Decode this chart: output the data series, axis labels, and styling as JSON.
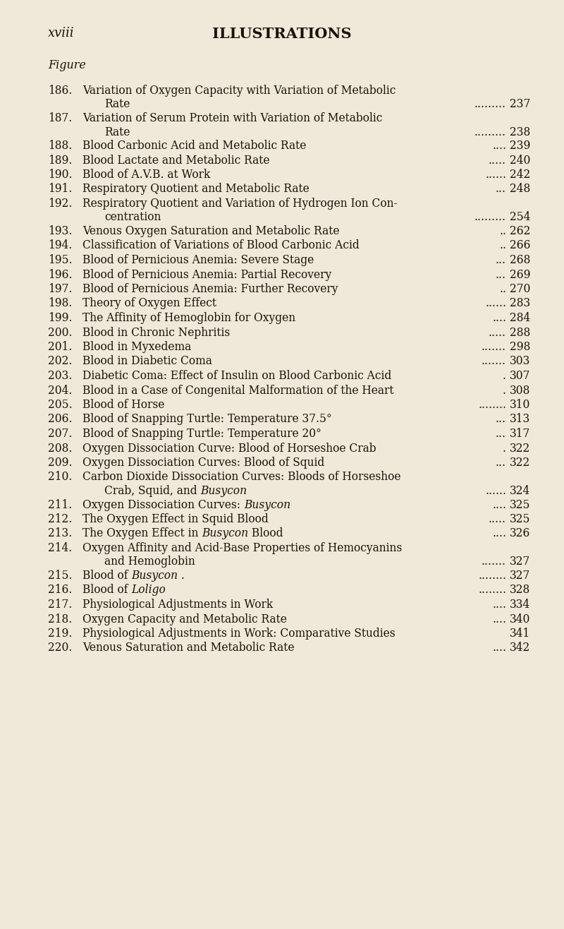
{
  "background_color": "#f0e8d8",
  "page_label": "xviii",
  "header": "ILLUSTRATIONS",
  "figure_label": "Figure",
  "text_color": "#1a1208",
  "font_size": 11.2,
  "entries": [
    {
      "num": "186.",
      "lines": [
        {
          "text": "Variation of Oxygen Capacity with Variation of Metabolic",
          "indent": false
        },
        {
          "text": "Rate",
          "indent": true,
          "dots": ".........",
          "page": "237"
        }
      ]
    },
    {
      "num": "187.",
      "lines": [
        {
          "text": "Variation of Serum Protein with Variation of Metabolic",
          "indent": false
        },
        {
          "text": "Rate",
          "indent": true,
          "dots": ".........",
          "page": "238"
        }
      ]
    },
    {
      "num": "188.",
      "lines": [
        {
          "text": "Blood Carbonic Acid and Metabolic Rate",
          "indent": false,
          "dots": "....",
          "page": "239"
        }
      ]
    },
    {
      "num": "189.",
      "lines": [
        {
          "text": "Blood Lactate and Metabolic Rate",
          "indent": false,
          "dots": ".....",
          "page": "240"
        }
      ]
    },
    {
      "num": "190.",
      "lines": [
        {
          "text": "Blood of A.V.B. at Work",
          "indent": false,
          "dots": "......",
          "page": "242"
        }
      ]
    },
    {
      "num": "191.",
      "lines": [
        {
          "text": "Respiratory Quotient and Metabolic Rate",
          "indent": false,
          "dots": "...",
          "page": "248"
        }
      ]
    },
    {
      "num": "192.",
      "lines": [
        {
          "text": "Respiratory Quotient and Variation of Hydrogen Ion Con-",
          "indent": false
        },
        {
          "text": "centration",
          "indent": true,
          "dots": ".........",
          "page": "254"
        }
      ]
    },
    {
      "num": "193.",
      "lines": [
        {
          "text": "Venous Oxygen Saturation and Metabolic Rate",
          "indent": false,
          "dots": "..",
          "page": "262"
        }
      ]
    },
    {
      "num": "194.",
      "lines": [
        {
          "text": "Classification of Variations of Blood Carbonic Acid",
          "indent": false,
          "dots": "..",
          "page": "266"
        }
      ]
    },
    {
      "num": "195.",
      "lines": [
        {
          "text": "Blood of Pernicious Anemia: Severe Stage",
          "indent": false,
          "dots": "...",
          "page": "268"
        }
      ]
    },
    {
      "num": "196.",
      "lines": [
        {
          "text": "Blood of Pernicious Anemia: Partial Recovery",
          "indent": false,
          "dots": "...",
          "page": "269"
        }
      ]
    },
    {
      "num": "197.",
      "lines": [
        {
          "text": "Blood of Pernicious Anemia: Further Recovery",
          "indent": false,
          "dots": "..",
          "page": "270"
        }
      ]
    },
    {
      "num": "198.",
      "lines": [
        {
          "text": "Theory of Oxygen Effect",
          "indent": false,
          "dots": "......",
          "page": "283"
        }
      ]
    },
    {
      "num": "199.",
      "lines": [
        {
          "text": "The Affinity of Hemoglobin for Oxygen",
          "indent": false,
          "dots": "....",
          "page": "284"
        }
      ]
    },
    {
      "num": "200.",
      "lines": [
        {
          "text": "Blood in Chronic Nephritis",
          "indent": false,
          "dots": ".....",
          "page": "288"
        }
      ]
    },
    {
      "num": "201.",
      "lines": [
        {
          "text": "Blood in Myxedema",
          "indent": false,
          "dots": ".......",
          "page": "298"
        }
      ]
    },
    {
      "num": "202.",
      "lines": [
        {
          "text": "Blood in Diabetic Coma",
          "indent": false,
          "dots": ".......",
          "page": "303"
        }
      ]
    },
    {
      "num": "203.",
      "lines": [
        {
          "text": "Diabetic Coma: Effect of Insulin on Blood Carbonic Acid",
          "indent": false,
          "dots": ".",
          "page": "307"
        }
      ]
    },
    {
      "num": "204.",
      "lines": [
        {
          "text": "Blood in a Case of Congenital Malformation of the Heart",
          "indent": false,
          "dots": ".",
          "page": "308"
        }
      ]
    },
    {
      "num": "205.",
      "lines": [
        {
          "text": "Blood of Horse",
          "indent": false,
          "dots": "........",
          "page": "310"
        }
      ]
    },
    {
      "num": "206.",
      "lines": [
        {
          "text": "Blood of Snapping Turtle: Temperature 37.5°",
          "indent": false,
          "dots": "...",
          "page": "313"
        }
      ]
    },
    {
      "num": "207.",
      "lines": [
        {
          "text": "Blood of Snapping Turtle: Temperature 20°",
          "indent": false,
          "dots": "...",
          "page": "317"
        }
      ]
    },
    {
      "num": "208.",
      "lines": [
        {
          "text": "Oxygen Dissociation Curve: Blood of Horseshoe Crab",
          "indent": false,
          "dots": ".",
          "page": "322"
        }
      ]
    },
    {
      "num": "209.",
      "lines": [
        {
          "text": "Oxygen Dissociation Curves: Blood of Squid",
          "indent": false,
          "dots": "...",
          "page": "322"
        }
      ]
    },
    {
      "num": "210.",
      "lines": [
        {
          "text": "Carbon Dioxide Dissociation Curves: Bloods of Horseshoe",
          "indent": false
        },
        {
          "text": "Crab, Squid, and |Busycon|",
          "indent": true,
          "dots": "......",
          "page": "324",
          "italic_word": "Busycon"
        }
      ]
    },
    {
      "num": "211.",
      "lines": [
        {
          "text": "Oxygen Dissociation Curves: |Busycon|",
          "indent": false,
          "dots": "....",
          "page": "325",
          "italic_word": "Busycon"
        }
      ]
    },
    {
      "num": "212.",
      "lines": [
        {
          "text": "The Oxygen Effect in Squid Blood",
          "indent": false,
          "dots": ".....",
          "page": "325"
        }
      ]
    },
    {
      "num": "213.",
      "lines": [
        {
          "text": "The Oxygen Effect in |Busycon| Blood",
          "indent": false,
          "dots": "....",
          "page": "326",
          "italic_word": "Busycon"
        }
      ]
    },
    {
      "num": "214.",
      "lines": [
        {
          "text": "Oxygen Affinity and Acid-Base Properties of Hemocyanins",
          "indent": false
        },
        {
          "text": "and Hemoglobin",
          "indent": true,
          "dots": ".......",
          "page": "327"
        }
      ]
    },
    {
      "num": "215.",
      "lines": [
        {
          "text": "Blood of |Busycon| .",
          "indent": false,
          "dots": "........",
          "page": "327",
          "italic_word": "Busycon"
        }
      ]
    },
    {
      "num": "216.",
      "lines": [
        {
          "text": "Blood of |Loligo|",
          "indent": false,
          "dots": "........",
          "page": "328",
          "italic_word": "Loligo"
        }
      ]
    },
    {
      "num": "217.",
      "lines": [
        {
          "text": "Physiological Adjustments in Work",
          "indent": false,
          "dots": "....",
          "page": "334"
        }
      ]
    },
    {
      "num": "218.",
      "lines": [
        {
          "text": "Oxygen Capacity and Metabolic Rate",
          "indent": false,
          "dots": "....",
          "page": "340"
        }
      ]
    },
    {
      "num": "219.",
      "lines": [
        {
          "text": "Physiological Adjustments in Work: Comparative Studies",
          "indent": false,
          "dots": "",
          "page": "341"
        }
      ]
    },
    {
      "num": "220.",
      "lines": [
        {
          "text": "Venous Saturation and Metabolic Rate",
          "indent": false,
          "dots": "....",
          "page": "342"
        }
      ]
    }
  ]
}
